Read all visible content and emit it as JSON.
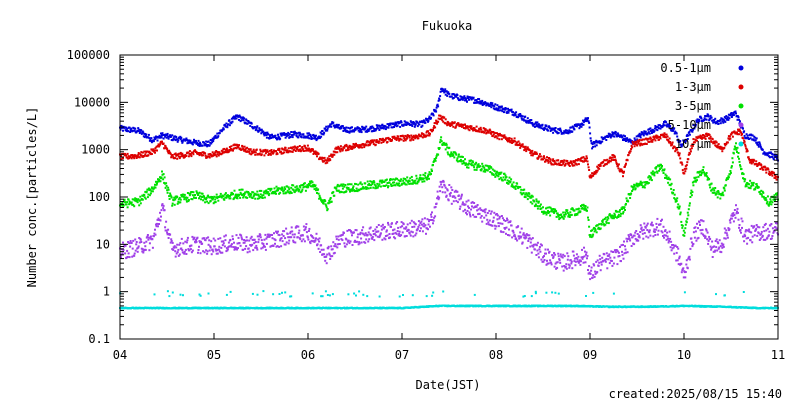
{
  "chart_data": {
    "type": "scatter",
    "title": "Fukuoka",
    "xlabel": "Date(JST)",
    "ylabel": "Number conc.[particles/L]",
    "yscale": "log",
    "ylim": [
      0.1,
      100000
    ],
    "xlim": [
      "04",
      "11"
    ],
    "x_ticks": [
      "04",
      "05",
      "06",
      "07",
      "08",
      "09",
      "10",
      "11"
    ],
    "y_ticks": [
      "0.1",
      "1",
      "10",
      "100",
      "1000",
      "10000",
      "100000"
    ],
    "grid": false,
    "legend_position": "top-right",
    "footer": "created:2025/08/15 15:40",
    "x_unit": "day",
    "series": [
      {
        "name": "0.5-1µm",
        "color": "#0000dd",
        "points": [
          [
            4.0,
            2800
          ],
          [
            4.2,
            2500
          ],
          [
            4.35,
            1600
          ],
          [
            4.45,
            2000
          ],
          [
            4.6,
            1700
          ],
          [
            4.8,
            1400
          ],
          [
            4.95,
            1300
          ],
          [
            5.05,
            2200
          ],
          [
            5.15,
            3500
          ],
          [
            5.25,
            5000
          ],
          [
            5.35,
            3800
          ],
          [
            5.5,
            2500
          ],
          [
            5.6,
            1800
          ],
          [
            5.7,
            1900
          ],
          [
            5.85,
            2100
          ],
          [
            6.0,
            2000
          ],
          [
            6.1,
            1800
          ],
          [
            6.15,
            2200
          ],
          [
            6.25,
            3500
          ],
          [
            6.35,
            2800
          ],
          [
            6.45,
            2600
          ],
          [
            6.6,
            2700
          ],
          [
            6.75,
            2900
          ],
          [
            6.9,
            3300
          ],
          [
            7.05,
            3600
          ],
          [
            7.2,
            3400
          ],
          [
            7.3,
            4500
          ],
          [
            7.38,
            8000
          ],
          [
            7.42,
            20000
          ],
          [
            7.5,
            14000
          ],
          [
            7.65,
            12000
          ],
          [
            7.8,
            11000
          ],
          [
            8.0,
            8000
          ],
          [
            8.2,
            6000
          ],
          [
            8.4,
            3500
          ],
          [
            8.6,
            2600
          ],
          [
            8.75,
            2400
          ],
          [
            8.9,
            3300
          ],
          [
            8.98,
            4500
          ],
          [
            9.02,
            1200
          ],
          [
            9.1,
            1500
          ],
          [
            9.25,
            2200
          ],
          [
            9.35,
            1800
          ],
          [
            9.45,
            1400
          ],
          [
            9.55,
            2100
          ],
          [
            9.7,
            2800
          ],
          [
            9.8,
            3500
          ],
          [
            9.9,
            2500
          ],
          [
            9.97,
            1200
          ],
          [
            10.05,
            2000
          ],
          [
            10.15,
            4200
          ],
          [
            10.25,
            5000
          ],
          [
            10.35,
            3800
          ],
          [
            10.45,
            4500
          ],
          [
            10.55,
            6000
          ],
          [
            10.65,
            2000
          ],
          [
            10.75,
            1800
          ],
          [
            10.85,
            900
          ],
          [
            11.0,
            650
          ]
        ]
      },
      {
        "name": "1-3µm",
        "color": "#dd0000",
        "points": [
          [
            4.0,
            700
          ],
          [
            4.2,
            750
          ],
          [
            4.35,
            900
          ],
          [
            4.45,
            1400
          ],
          [
            4.55,
            700
          ],
          [
            4.8,
            850
          ],
          [
            4.95,
            750
          ],
          [
            5.1,
            900
          ],
          [
            5.25,
            1200
          ],
          [
            5.4,
            900
          ],
          [
            5.6,
            850
          ],
          [
            5.8,
            1000
          ],
          [
            6.0,
            1100
          ],
          [
            6.12,
            700
          ],
          [
            6.2,
            550
          ],
          [
            6.3,
            1000
          ],
          [
            6.5,
            1200
          ],
          [
            6.7,
            1400
          ],
          [
            6.9,
            1700
          ],
          [
            7.1,
            1800
          ],
          [
            7.3,
            2200
          ],
          [
            7.4,
            5000
          ],
          [
            7.5,
            3500
          ],
          [
            7.7,
            3000
          ],
          [
            7.9,
            2500
          ],
          [
            8.0,
            2000
          ],
          [
            8.2,
            1500
          ],
          [
            8.4,
            800
          ],
          [
            8.6,
            550
          ],
          [
            8.8,
            500
          ],
          [
            8.97,
            650
          ],
          [
            9.0,
            250
          ],
          [
            9.1,
            450
          ],
          [
            9.25,
            700
          ],
          [
            9.35,
            300
          ],
          [
            9.45,
            1300
          ],
          [
            9.6,
            1500
          ],
          [
            9.8,
            2000
          ],
          [
            9.95,
            800
          ],
          [
            10.0,
            300
          ],
          [
            10.1,
            1500
          ],
          [
            10.25,
            2000
          ],
          [
            10.4,
            1000
          ],
          [
            10.5,
            2000
          ],
          [
            10.6,
            2500
          ],
          [
            10.7,
            600
          ],
          [
            10.85,
            400
          ],
          [
            11.0,
            250
          ]
        ]
      },
      {
        "name": "3-5µm",
        "color": "#00e000",
        "points": [
          [
            4.0,
            70
          ],
          [
            4.2,
            80
          ],
          [
            4.35,
            150
          ],
          [
            4.45,
            300
          ],
          [
            4.55,
            80
          ],
          [
            4.8,
            110
          ],
          [
            4.95,
            85
          ],
          [
            5.1,
            100
          ],
          [
            5.3,
            120
          ],
          [
            5.5,
            110
          ],
          [
            5.7,
            140
          ],
          [
            5.9,
            150
          ],
          [
            6.05,
            180
          ],
          [
            6.15,
            90
          ],
          [
            6.2,
            60
          ],
          [
            6.3,
            150
          ],
          [
            6.5,
            160
          ],
          [
            6.7,
            180
          ],
          [
            6.9,
            200
          ],
          [
            7.1,
            220
          ],
          [
            7.3,
            280
          ],
          [
            7.42,
            1600
          ],
          [
            7.5,
            900
          ],
          [
            7.7,
            500
          ],
          [
            7.9,
            400
          ],
          [
            8.1,
            250
          ],
          [
            8.3,
            120
          ],
          [
            8.5,
            55
          ],
          [
            8.7,
            40
          ],
          [
            8.85,
            50
          ],
          [
            8.97,
            60
          ],
          [
            9.0,
            15
          ],
          [
            9.1,
            25
          ],
          [
            9.25,
            40
          ],
          [
            9.35,
            50
          ],
          [
            9.45,
            150
          ],
          [
            9.6,
            200
          ],
          [
            9.75,
            450
          ],
          [
            9.85,
            200
          ],
          [
            9.95,
            60
          ],
          [
            10.0,
            15
          ],
          [
            10.1,
            200
          ],
          [
            10.2,
            400
          ],
          [
            10.3,
            150
          ],
          [
            10.4,
            100
          ],
          [
            10.5,
            400
          ],
          [
            10.55,
            1300
          ],
          [
            10.65,
            200
          ],
          [
            10.8,
            150
          ],
          [
            10.9,
            80
          ],
          [
            11.0,
            100
          ]
        ]
      },
      {
        "name": "5-10µm",
        "color": "#a040e8",
        "points": [
          [
            4.0,
            7
          ],
          [
            4.2,
            9
          ],
          [
            4.35,
            12
          ],
          [
            4.45,
            60
          ],
          [
            4.55,
            8
          ],
          [
            4.8,
            10
          ],
          [
            5.0,
            9
          ],
          [
            5.2,
            11
          ],
          [
            5.4,
            10
          ],
          [
            5.6,
            12
          ],
          [
            5.8,
            15
          ],
          [
            6.0,
            18
          ],
          [
            6.12,
            10
          ],
          [
            6.2,
            6
          ],
          [
            6.35,
            13
          ],
          [
            6.55,
            15
          ],
          [
            6.75,
            18
          ],
          [
            6.95,
            20
          ],
          [
            7.15,
            22
          ],
          [
            7.3,
            25
          ],
          [
            7.42,
            180
          ],
          [
            7.5,
            120
          ],
          [
            7.7,
            60
          ],
          [
            7.9,
            40
          ],
          [
            8.1,
            25
          ],
          [
            8.3,
            14
          ],
          [
            8.5,
            6
          ],
          [
            8.7,
            4
          ],
          [
            8.85,
            5
          ],
          [
            8.97,
            6
          ],
          [
            9.0,
            2
          ],
          [
            9.1,
            4
          ],
          [
            9.25,
            5
          ],
          [
            9.35,
            7
          ],
          [
            9.45,
            14
          ],
          [
            9.6,
            20
          ],
          [
            9.75,
            25
          ],
          [
            9.85,
            12
          ],
          [
            9.95,
            5
          ],
          [
            10.0,
            2
          ],
          [
            10.1,
            15
          ],
          [
            10.2,
            25
          ],
          [
            10.3,
            8
          ],
          [
            10.4,
            10
          ],
          [
            10.55,
            50
          ],
          [
            10.65,
            15
          ],
          [
            10.8,
            18
          ],
          [
            11.0,
            20
          ]
        ]
      },
      {
        "name": "10-µm",
        "color": "#00dddd",
        "points": [
          [
            4.0,
            0.45
          ],
          [
            4.5,
            0.45
          ],
          [
            5.0,
            0.45
          ],
          [
            5.5,
            0.45
          ],
          [
            6.0,
            0.45
          ],
          [
            6.5,
            0.45
          ],
          [
            7.0,
            0.45
          ],
          [
            7.4,
            0.5
          ],
          [
            7.8,
            0.5
          ],
          [
            8.3,
            0.5
          ],
          [
            8.8,
            0.5
          ],
          [
            9.2,
            0.48
          ],
          [
            9.6,
            0.48
          ],
          [
            10.0,
            0.5
          ],
          [
            10.4,
            0.48
          ],
          [
            10.8,
            0.45
          ],
          [
            11.0,
            0.45
          ]
        ]
      }
    ]
  }
}
